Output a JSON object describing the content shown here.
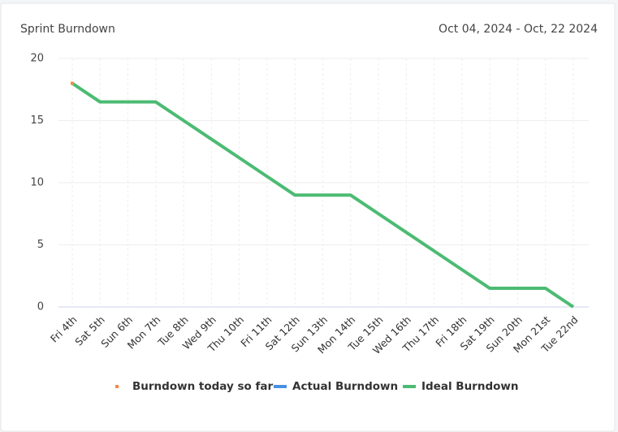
{
  "chart_data": {
    "type": "line",
    "title": "Sprint Burndown",
    "subtitle": "Oct 04, 2024 - Oct, 22 2024",
    "categories": [
      "Fri 4th",
      "Sat 5th",
      "Sun 6th",
      "Mon 7th",
      "Tue 8th",
      "Wed 9th",
      "Thu 10th",
      "Fri 11th",
      "Sat 12th",
      "Sun 13th",
      "Mon 14th",
      "Tue 15th",
      "Wed 16th",
      "Thu 17th",
      "Fri 18th",
      "Sat 19th",
      "Sun 20th",
      "Mon 21st",
      "Tue 22nd"
    ],
    "series": [
      {
        "name": "Burndown today so far",
        "color": "#f58a42",
        "mode": "markers",
        "values": [
          18,
          null,
          null,
          null,
          null,
          null,
          null,
          null,
          null,
          null,
          null,
          null,
          null,
          null,
          null,
          null,
          null,
          null,
          null
        ]
      },
      {
        "name": "Actual Burndown",
        "color": "#4a90e2",
        "mode": "lines",
        "values": [
          null,
          null,
          null,
          null,
          null,
          null,
          null,
          null,
          null,
          null,
          null,
          null,
          null,
          null,
          null,
          null,
          null,
          null,
          null
        ]
      },
      {
        "name": "Ideal Burndown",
        "color": "#4cbb73",
        "mode": "lines",
        "values": [
          18,
          16.5,
          16.5,
          16.5,
          15,
          13.5,
          12,
          10.5,
          9,
          9,
          9,
          7.5,
          6,
          4.5,
          3,
          1.5,
          1.5,
          1.5,
          0
        ]
      }
    ],
    "ylim": [
      0,
      20
    ],
    "yticks": [
      0,
      5,
      10,
      15,
      20
    ],
    "grid": true,
    "legend": "bottom"
  }
}
